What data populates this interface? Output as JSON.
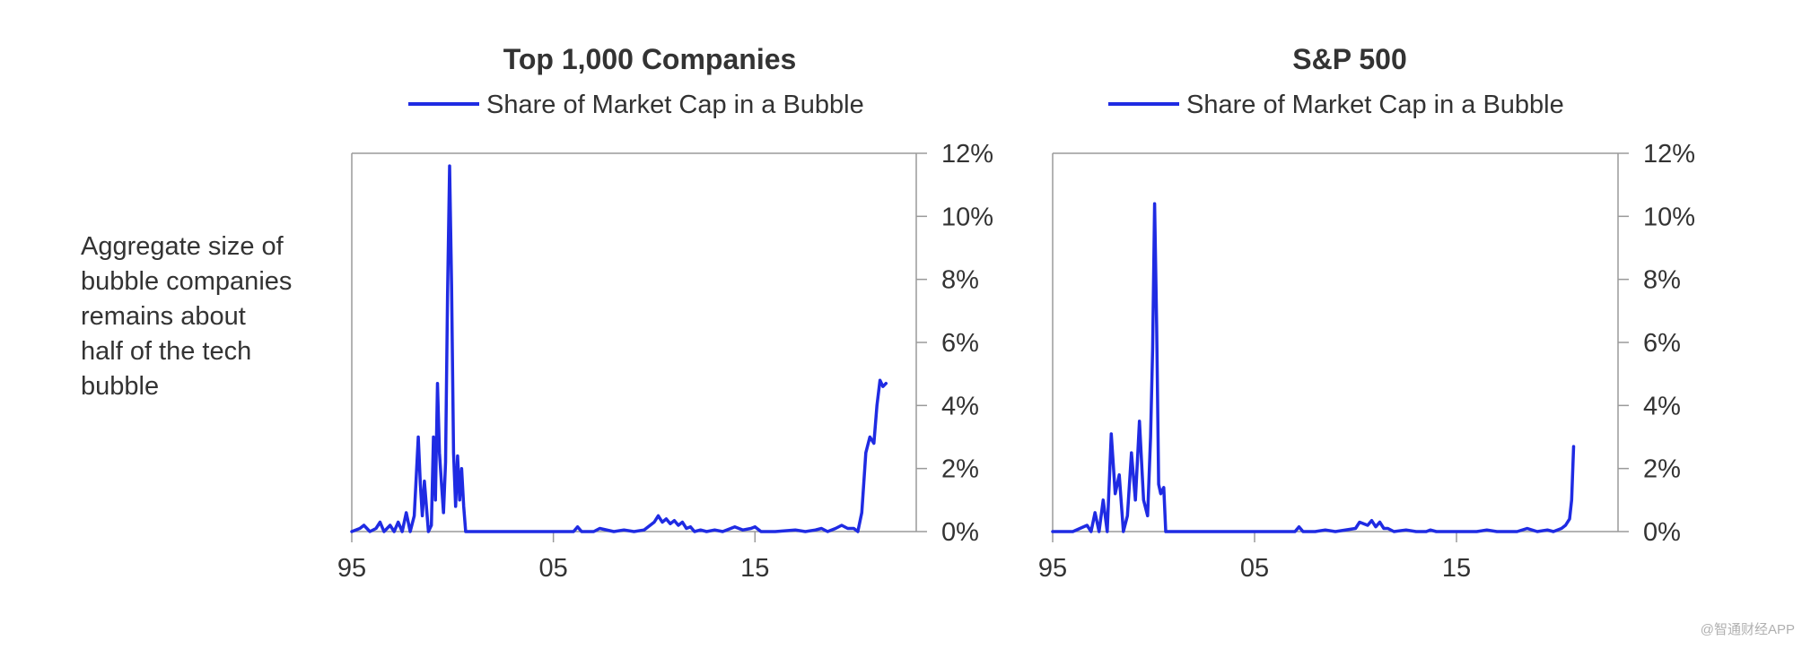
{
  "side_note": {
    "lines": [
      "Aggregate size of",
      "bubble companies",
      "remains about",
      "half of the tech",
      "bubble"
    ]
  },
  "watermark": "@智通财经APP",
  "colors": {
    "series": "#1f2be3",
    "axis": "#9a9a9a",
    "text": "#333333"
  },
  "chart_data": [
    {
      "type": "line",
      "title": "Top 1,000 Companies",
      "legend": "Share of Market Cap in a Bubble",
      "xlabel": "",
      "ylabel": "",
      "xlim": [
        1995,
        2023
      ],
      "ylim": [
        0,
        12
      ],
      "x_ticks": [
        1995,
        2005,
        2015
      ],
      "x_tick_labels": [
        "95",
        "05",
        "15"
      ],
      "y_ticks": [
        0,
        2,
        4,
        6,
        8,
        10,
        12
      ],
      "y_tick_labels": [
        "0%",
        "2%",
        "4%",
        "6%",
        "8%",
        "10%",
        "12%"
      ],
      "y_axis_side": "right",
      "series": [
        {
          "name": "Share of Market Cap in a Bubble",
          "x": [
            1995.0,
            1995.4,
            1995.6,
            1995.9,
            1996.2,
            1996.4,
            1996.6,
            1996.9,
            1997.1,
            1997.3,
            1997.5,
            1997.7,
            1997.9,
            1998.1,
            1998.3,
            1998.4,
            1998.5,
            1998.6,
            1998.8,
            1998.95,
            1999.05,
            1999.15,
            1999.25,
            1999.35,
            1999.45,
            1999.55,
            1999.65,
            1999.75,
            1999.85,
            1999.95,
            2000.05,
            2000.15,
            2000.25,
            2000.35,
            2000.45,
            2000.55,
            2000.65,
            2000.75,
            2000.85,
            2001.0,
            2001.2,
            2002.0,
            2004.0,
            2006.0,
            2006.2,
            2006.4,
            2007.0,
            2007.3,
            2008.0,
            2008.5,
            2009.0,
            2009.5,
            2010.0,
            2010.2,
            2010.4,
            2010.6,
            2010.8,
            2011.0,
            2011.2,
            2011.4,
            2011.6,
            2011.8,
            2012.0,
            2012.3,
            2012.6,
            2013.0,
            2013.4,
            2013.8,
            2014.0,
            2014.4,
            2014.8,
            2015.0,
            2015.3,
            2016.0,
            2017.0,
            2017.5,
            2018.0,
            2018.3,
            2018.6,
            2019.0,
            2019.3,
            2019.6,
            2019.9,
            2020.1,
            2020.3,
            2020.5,
            2020.7,
            2020.9,
            2021.05,
            2021.2,
            2021.35,
            2021.5
          ],
          "values": [
            0,
            0.1,
            0.2,
            0,
            0.1,
            0.3,
            0,
            0.2,
            0,
            0.3,
            0,
            0.6,
            0,
            0.5,
            3.0,
            1.5,
            0.5,
            1.6,
            0,
            0.2,
            3.0,
            1.0,
            4.7,
            2.5,
            1.5,
            0.6,
            2.2,
            7.5,
            11.6,
            7.8,
            2.5,
            0.8,
            2.4,
            1.0,
            2.0,
            0.8,
            0,
            0,
            0,
            0,
            0,
            0,
            0,
            0,
            0.15,
            0,
            0,
            0.1,
            0,
            0.05,
            0,
            0.05,
            0.3,
            0.5,
            0.3,
            0.4,
            0.25,
            0.35,
            0.2,
            0.3,
            0.1,
            0.15,
            0,
            0.05,
            0,
            0.05,
            0,
            0.1,
            0.15,
            0.05,
            0.1,
            0.15,
            0,
            0,
            0.05,
            0,
            0.05,
            0.1,
            0,
            0.1,
            0.2,
            0.1,
            0.1,
            0,
            0.6,
            2.5,
            3.0,
            2.8,
            4.0,
            4.8,
            4.6,
            4.7
          ]
        }
      ]
    },
    {
      "type": "line",
      "title": "S&P 500",
      "legend": "Share of Market Cap in a Bubble",
      "xlabel": "",
      "ylabel": "",
      "xlim": [
        1995,
        2023
      ],
      "ylim": [
        0,
        12
      ],
      "x_ticks": [
        1995,
        2005,
        2015
      ],
      "x_tick_labels": [
        "95",
        "05",
        "15"
      ],
      "y_ticks": [
        0,
        2,
        4,
        6,
        8,
        10,
        12
      ],
      "y_tick_labels": [
        "0%",
        "2%",
        "4%",
        "6%",
        "8%",
        "10%",
        "12%"
      ],
      "y_axis_side": "right",
      "series": [
        {
          "name": "Share of Market Cap in a Bubble",
          "x": [
            1995.0,
            1996.0,
            1996.7,
            1996.9,
            1997.1,
            1997.3,
            1997.5,
            1997.7,
            1997.9,
            1998.1,
            1998.3,
            1998.5,
            1998.7,
            1998.9,
            1999.1,
            1999.3,
            1999.5,
            1999.7,
            1999.85,
            1999.95,
            2000.05,
            2000.15,
            2000.25,
            2000.35,
            2000.5,
            2000.6,
            2000.7,
            2000.8,
            2000.9,
            2001.0,
            2001.3,
            2003.0,
            2005.0,
            2007.0,
            2007.2,
            2007.4,
            2008.0,
            2008.5,
            2009.0,
            2010.0,
            2010.2,
            2010.4,
            2010.6,
            2010.8,
            2011.0,
            2011.2,
            2011.4,
            2011.6,
            2011.9,
            2012.5,
            2013.0,
            2013.5,
            2013.7,
            2014.0,
            2015.0,
            2016.0,
            2016.5,
            2017.0,
            2018.0,
            2018.5,
            2019.0,
            2019.5,
            2019.8,
            2020.2,
            2020.4,
            2020.6,
            2020.7,
            2020.8
          ],
          "values": [
            0,
            0,
            0.2,
            0,
            0.6,
            0,
            1.0,
            0,
            3.1,
            1.2,
            1.8,
            0,
            0.5,
            2.5,
            1.0,
            3.5,
            1.0,
            0.5,
            3.0,
            5.8,
            10.4,
            6.5,
            1.5,
            1.2,
            1.4,
            0,
            0,
            0,
            0,
            0,
            0,
            0,
            0,
            0,
            0.15,
            0,
            0,
            0.05,
            0,
            0.1,
            0.3,
            0.25,
            0.2,
            0.35,
            0.15,
            0.3,
            0.1,
            0.1,
            0,
            0.05,
            0,
            0,
            0.05,
            0,
            0,
            0,
            0.05,
            0,
            0,
            0.1,
            0,
            0.05,
            0,
            0.1,
            0.2,
            0.4,
            1.0,
            2.7
          ]
        }
      ]
    }
  ]
}
